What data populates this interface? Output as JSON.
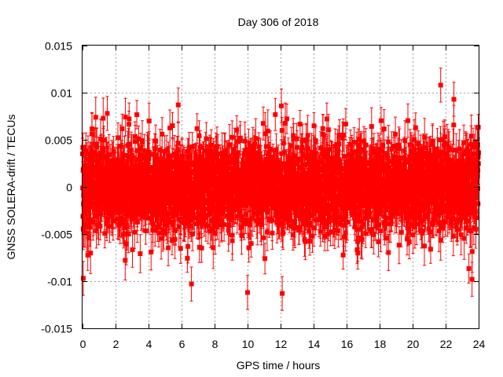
{
  "chart_data": {
    "type": "scatter",
    "title": "Day 306 of 2018",
    "xlabel": "GPS time / hours",
    "ylabel": "GNSS SOLERA-drift / TECUs",
    "xlim": [
      0,
      24
    ],
    "ylim": [
      -0.015,
      0.015
    ],
    "x_ticks": [
      0,
      2,
      4,
      6,
      8,
      10,
      12,
      14,
      16,
      18,
      20,
      22,
      24
    ],
    "x_tick_labels": [
      "0",
      "2",
      "4",
      "6",
      "8",
      "10",
      "12",
      "14",
      "16",
      "18",
      "20",
      "22",
      "24"
    ],
    "y_ticks": [
      -0.015,
      -0.01,
      -0.005,
      0,
      0.005,
      0.01,
      0.015
    ],
    "y_tick_labels": [
      "-0.015",
      "-0.01",
      "-0.005",
      "0",
      "0.005",
      "0.01",
      "0.015"
    ],
    "grid": true,
    "series": [
      {
        "name": "SOLERA-drift",
        "color": "#ff0000",
        "marker": "square",
        "error_bars": true,
        "x_range": [
          0,
          24
        ],
        "n_points": 2880,
        "mean": 0.0,
        "std": 0.0025,
        "typical_error": 0.0018,
        "notable_points": [
          {
            "x": 0.05,
            "y": -0.0097
          },
          {
            "x": 1.5,
            "y": 0.0078
          },
          {
            "x": 5.8,
            "y": 0.0087
          },
          {
            "x": 6.6,
            "y": -0.0103
          },
          {
            "x": 10.0,
            "y": -0.0112
          },
          {
            "x": 12.1,
            "y": -0.0113
          },
          {
            "x": 12.05,
            "y": 0.0086
          },
          {
            "x": 21.7,
            "y": 0.0108
          },
          {
            "x": 22.5,
            "y": 0.0093
          },
          {
            "x": 23.6,
            "y": -0.0098
          }
        ]
      }
    ]
  }
}
